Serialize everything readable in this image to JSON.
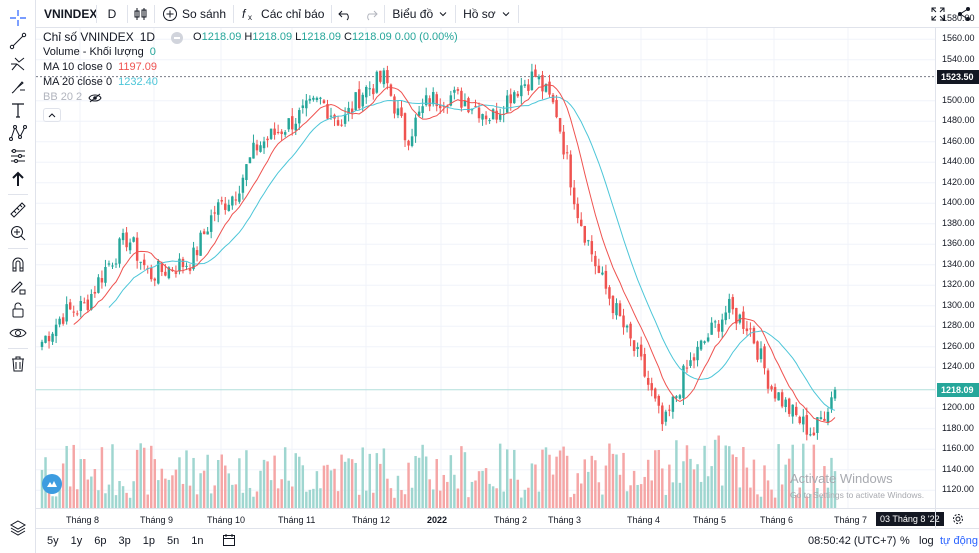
{
  "symbol": "VNINDEX",
  "toolbar": {
    "interval": "D",
    "compare": "So sánh",
    "indicators": "Các chỉ báo",
    "chart_layout": "Biểu đồ",
    "profile": "Hồ sơ"
  },
  "legend": {
    "title": "Chỉ số VNINDEX",
    "interval": "1D",
    "o_label": "O",
    "o_value": "1218.09",
    "h_label": "H",
    "h_value": "1218.09",
    "l_label": "L",
    "l_value": "1218.09",
    "c_label": "C",
    "c_value": "1218.09",
    "change": "0.00 (0.00%)",
    "volume_label": "Volume - Khối lượng",
    "volume_value": "0",
    "ma10_label": "MA 10 close 0",
    "ma10_value": "1197.09",
    "ma20_label": "MA 20 close 0",
    "ma20_value": "1232.40",
    "bb_label": "BB 20 2"
  },
  "colors": {
    "up": "#26a69a",
    "down": "#ef5350",
    "ma10": "#ef5350",
    "ma20": "#4dc6d8",
    "vol_up": "#9fd6d0",
    "vol_down": "#f5a6a6"
  },
  "price_axis": {
    "ticks": [
      "1580.00",
      "1560.00",
      "1540.00",
      "1500.00",
      "1480.00",
      "1460.00",
      "1440.00",
      "1420.00",
      "1400.00",
      "1380.00",
      "1360.00",
      "1340.00",
      "1320.00",
      "1300.00",
      "1280.00",
      "1260.00",
      "1240.00",
      "1200.00",
      "1180.00",
      "1160.00",
      "1140.00",
      "1120.00"
    ],
    "hline_label": "1523.50",
    "last_price_label": "1218.09"
  },
  "time_axis": {
    "ticks": [
      "Tháng 8",
      "Tháng 9",
      "Tháng 10",
      "Tháng 11",
      "Tháng 12",
      "2022",
      "Tháng 2",
      "Tháng 3",
      "Tháng 4",
      "Tháng 5",
      "Tháng 6",
      "Tháng 7"
    ],
    "crosshair_label": "03 Tháng 8 '22"
  },
  "bottombar": {
    "ranges": [
      "5y",
      "1y",
      "6p",
      "3p",
      "1p",
      "5n",
      "1n"
    ],
    "clock": "08:50:42 (UTC+7)",
    "percent": "%",
    "log": "log",
    "auto": "tự động"
  },
  "watermark": {
    "line1": "Activate Windows",
    "line2": "Go to Settings to activate Windows."
  },
  "chart_data": {
    "type": "candlestick",
    "title": "Chỉ số VNINDEX 1D",
    "ylim": [
      1110,
      1590
    ],
    "start_month": "Tháng 7 2021",
    "end_month": "Tháng 8 2022",
    "months": [
      "Tháng 7",
      "Tháng 8",
      "Tháng 9",
      "Tháng 10",
      "Tháng 11",
      "Tháng 12",
      "2022",
      "Tháng 2",
      "Tháng 3",
      "Tháng 4",
      "Tháng 5",
      "Tháng 6",
      "Tháng 7"
    ],
    "anchor_closes": [
      1265,
      1292,
      1300,
      1338,
      1367,
      1330,
      1337,
      1344,
      1391,
      1410,
      1455,
      1470,
      1485,
      1500,
      1478,
      1510,
      1522,
      1463,
      1500,
      1505,
      1498,
      1484,
      1510,
      1525,
      1490,
      1392,
      1330,
      1285,
      1240,
      1180,
      1235,
      1268,
      1297,
      1280,
      1222,
      1195,
      1175,
      1218.09
    ],
    "volume_max": 900000000,
    "ma10_last": 1197.09,
    "ma20_last": 1232.4,
    "hline": 1523.5,
    "last_price": 1218.09
  }
}
